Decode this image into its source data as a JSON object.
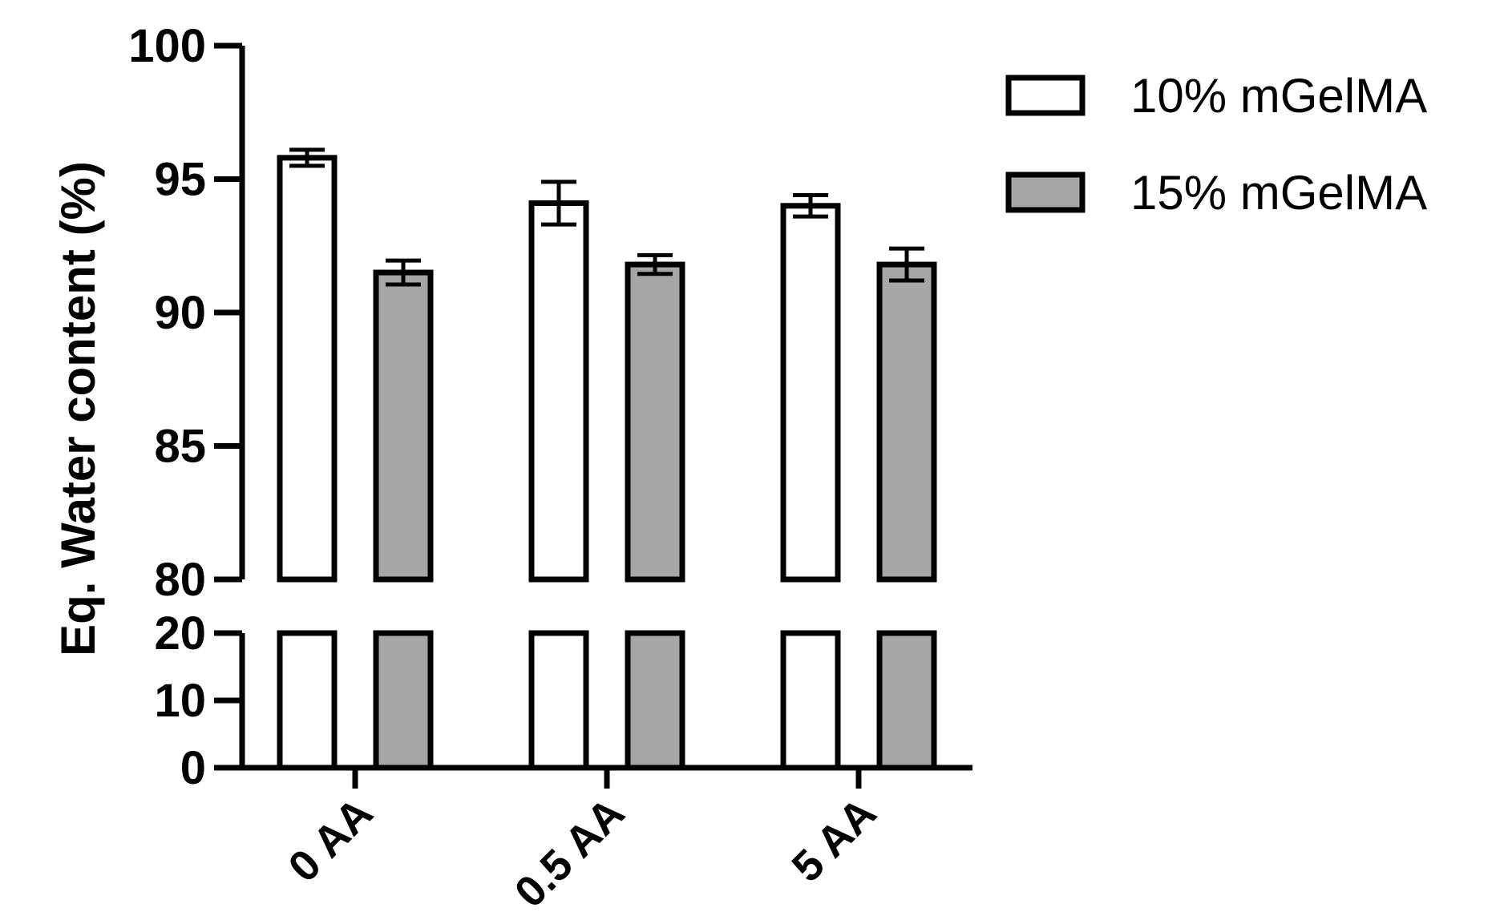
{
  "chart_data": {
    "type": "bar",
    "title": "",
    "ylabel": "Eq. Water content (%)",
    "xlabel": "",
    "categories": [
      "0 AA",
      "0.5 AA",
      "5 AA"
    ],
    "series": [
      {
        "name": "10% mGelMA",
        "values": [
          95.8,
          94.1,
          94.0
        ],
        "errors": [
          0.3,
          0.8,
          0.4
        ],
        "color": "#ffffff"
      },
      {
        "name": "15% mGelMA",
        "values": [
          91.5,
          91.8,
          91.8
        ],
        "errors": [
          0.45,
          0.35,
          0.6
        ],
        "color": "#a6a6a6"
      }
    ],
    "y_axis_break": {
      "lower_segment": {
        "range": [
          0,
          20
        ],
        "ticks": [
          0,
          10,
          20
        ]
      },
      "upper_segment": {
        "range": [
          80,
          100
        ],
        "ticks": [
          80,
          85,
          90,
          95,
          100
        ]
      }
    },
    "grid": false,
    "legend_position": "top-right"
  }
}
